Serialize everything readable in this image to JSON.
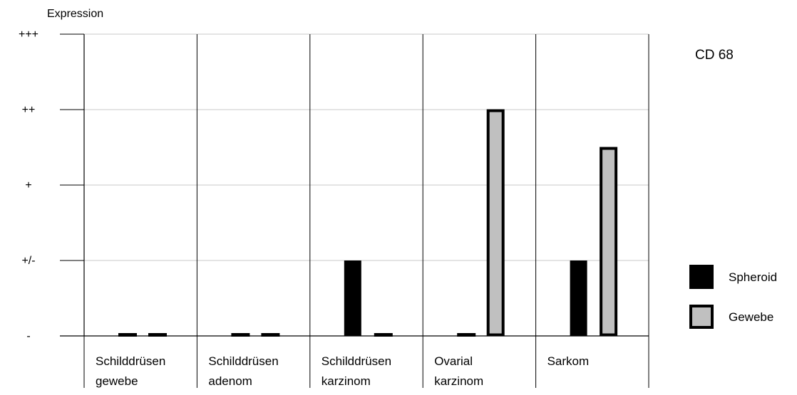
{
  "chart_data": {
    "type": "bar",
    "title": "CD 68",
    "ylabel": "Expression",
    "xlabel": "",
    "y_tick_labels": [
      "-",
      "+/-",
      "+",
      "++",
      "+++"
    ],
    "ylim": [
      0,
      4
    ],
    "grid": true,
    "legend_position": "right",
    "categories": [
      [
        "Schilddrüsen",
        "gewebe"
      ],
      [
        "Schilddrüsen",
        "adenom"
      ],
      [
        "Schilddrüsen",
        "karzinom"
      ],
      [
        "Ovarial",
        "karzinom"
      ],
      [
        "Sarkom"
      ]
    ],
    "series": [
      {
        "name": "Spheroid",
        "color": "#000000",
        "values": [
          0,
          0,
          1,
          0,
          1
        ]
      },
      {
        "name": "Gewebe",
        "color": "#c0c0c0",
        "values": [
          0,
          0,
          0,
          3,
          2.5
        ]
      }
    ]
  }
}
